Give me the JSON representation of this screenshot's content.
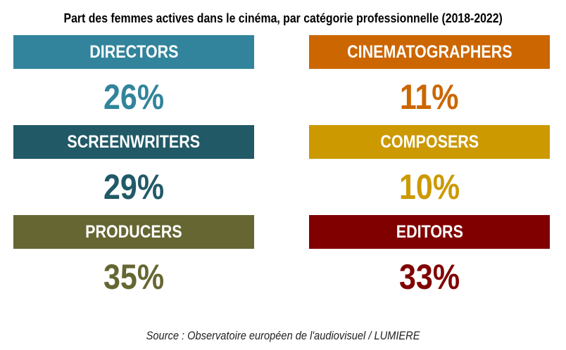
{
  "chart_data": {
    "type": "table",
    "title": "Part des femmes actives dans le cinéma, par catégorie professionnelle (2018-2022)",
    "unit": "%",
    "categories": [
      "DIRECTORS",
      "SCREENWRITERS",
      "PRODUCERS",
      "CINEMATOGRAPHERS",
      "COMPOSERS",
      "EDITORS"
    ],
    "values": [
      26,
      29,
      35,
      11,
      10,
      33
    ],
    "labels": [
      "26%",
      "29%",
      "35%",
      "11%",
      "10%",
      "33%"
    ],
    "colors": [
      "#31849b",
      "#215967",
      "#666633",
      "#cc6600",
      "#cc9900",
      "#800000"
    ],
    "source": "Source : Observatoire européen de l'audiovisuel / LUMIERE"
  }
}
